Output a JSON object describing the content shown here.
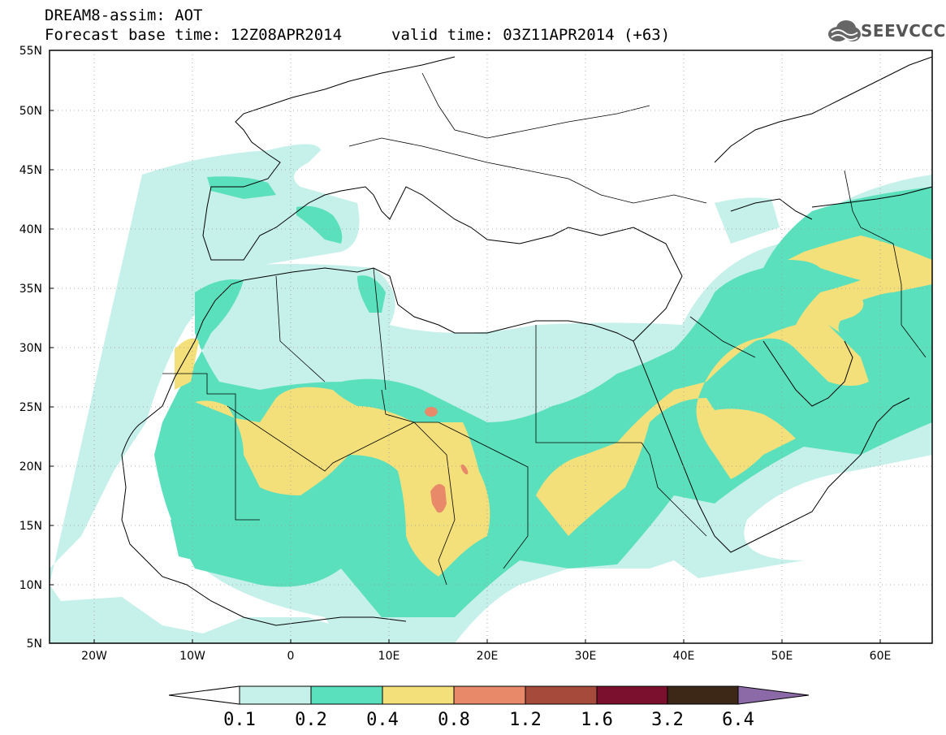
{
  "header": {
    "model_title": "DREAM8-assim: AOT",
    "base_time": "Forecast base time: 12Z08APR2014",
    "valid_time": "valid time: 03Z11APR2014 (+63)"
  },
  "logo": {
    "text": "SEEVCCC",
    "icon": "cloud-logo-icon"
  },
  "map": {
    "lat_labels": [
      "55N",
      "50N",
      "45N",
      "40N",
      "35N",
      "30N",
      "25N",
      "20N",
      "15N",
      "10N",
      "5N"
    ],
    "lon_labels": [
      "20W",
      "10W",
      "0",
      "10E",
      "20E",
      "30E",
      "40E",
      "50E",
      "60E"
    ],
    "lon_range": [
      -25,
      65
    ],
    "lat_range": [
      5,
      55
    ]
  },
  "colorbar": {
    "labels": [
      "0.1",
      "0.2",
      "0.4",
      "0.8",
      "1.2",
      "1.6",
      "3.2",
      "6.4"
    ],
    "colors": [
      "#ffffff",
      "#c6f0ea",
      "#5ae0bd",
      "#f4e07a",
      "#e8896a",
      "#a64b3c",
      "#7a0f2e",
      "#3d2818",
      "#8c6aa8"
    ]
  }
}
